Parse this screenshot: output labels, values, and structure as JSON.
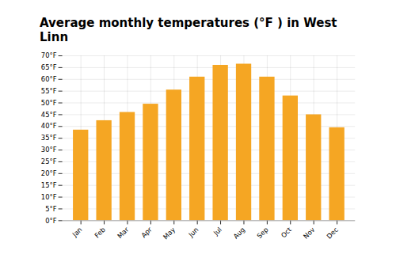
{
  "chart_data": {
    "type": "bar",
    "title": "Average monthly temperatures (°F ) in West Linn",
    "categories": [
      "Jan",
      "Feb",
      "Mar",
      "Apr",
      "May",
      "Jun",
      "Jul",
      "Aug",
      "Sep",
      "Oct",
      "Nov",
      "Dec"
    ],
    "values": [
      38.5,
      42.5,
      46.0,
      49.5,
      55.5,
      61.0,
      66.0,
      66.5,
      61.0,
      53.0,
      45.0,
      39.5
    ],
    "color": "#F5A623",
    "ylim": [
      0,
      70
    ],
    "yticks": [
      {
        "value": 0,
        "label": "0°F"
      },
      {
        "value": 5,
        "label": "5°F"
      },
      {
        "value": 10,
        "label": "10°F"
      },
      {
        "value": 15,
        "label": "15°F"
      },
      {
        "value": 20,
        "label": "20°F"
      },
      {
        "value": 25,
        "label": "25°F"
      },
      {
        "value": 30,
        "label": "30°F"
      },
      {
        "value": 35,
        "label": "35°F"
      },
      {
        "value": 40,
        "label": "40°F"
      },
      {
        "value": 45,
        "label": "45°F"
      },
      {
        "value": 50,
        "label": "50°F"
      },
      {
        "value": 55,
        "label": "55°F"
      },
      {
        "value": 60,
        "label": "60°F"
      },
      {
        "value": 65,
        "label": "65°F"
      },
      {
        "value": 70,
        "label": "70°F"
      }
    ],
    "grid": true
  }
}
